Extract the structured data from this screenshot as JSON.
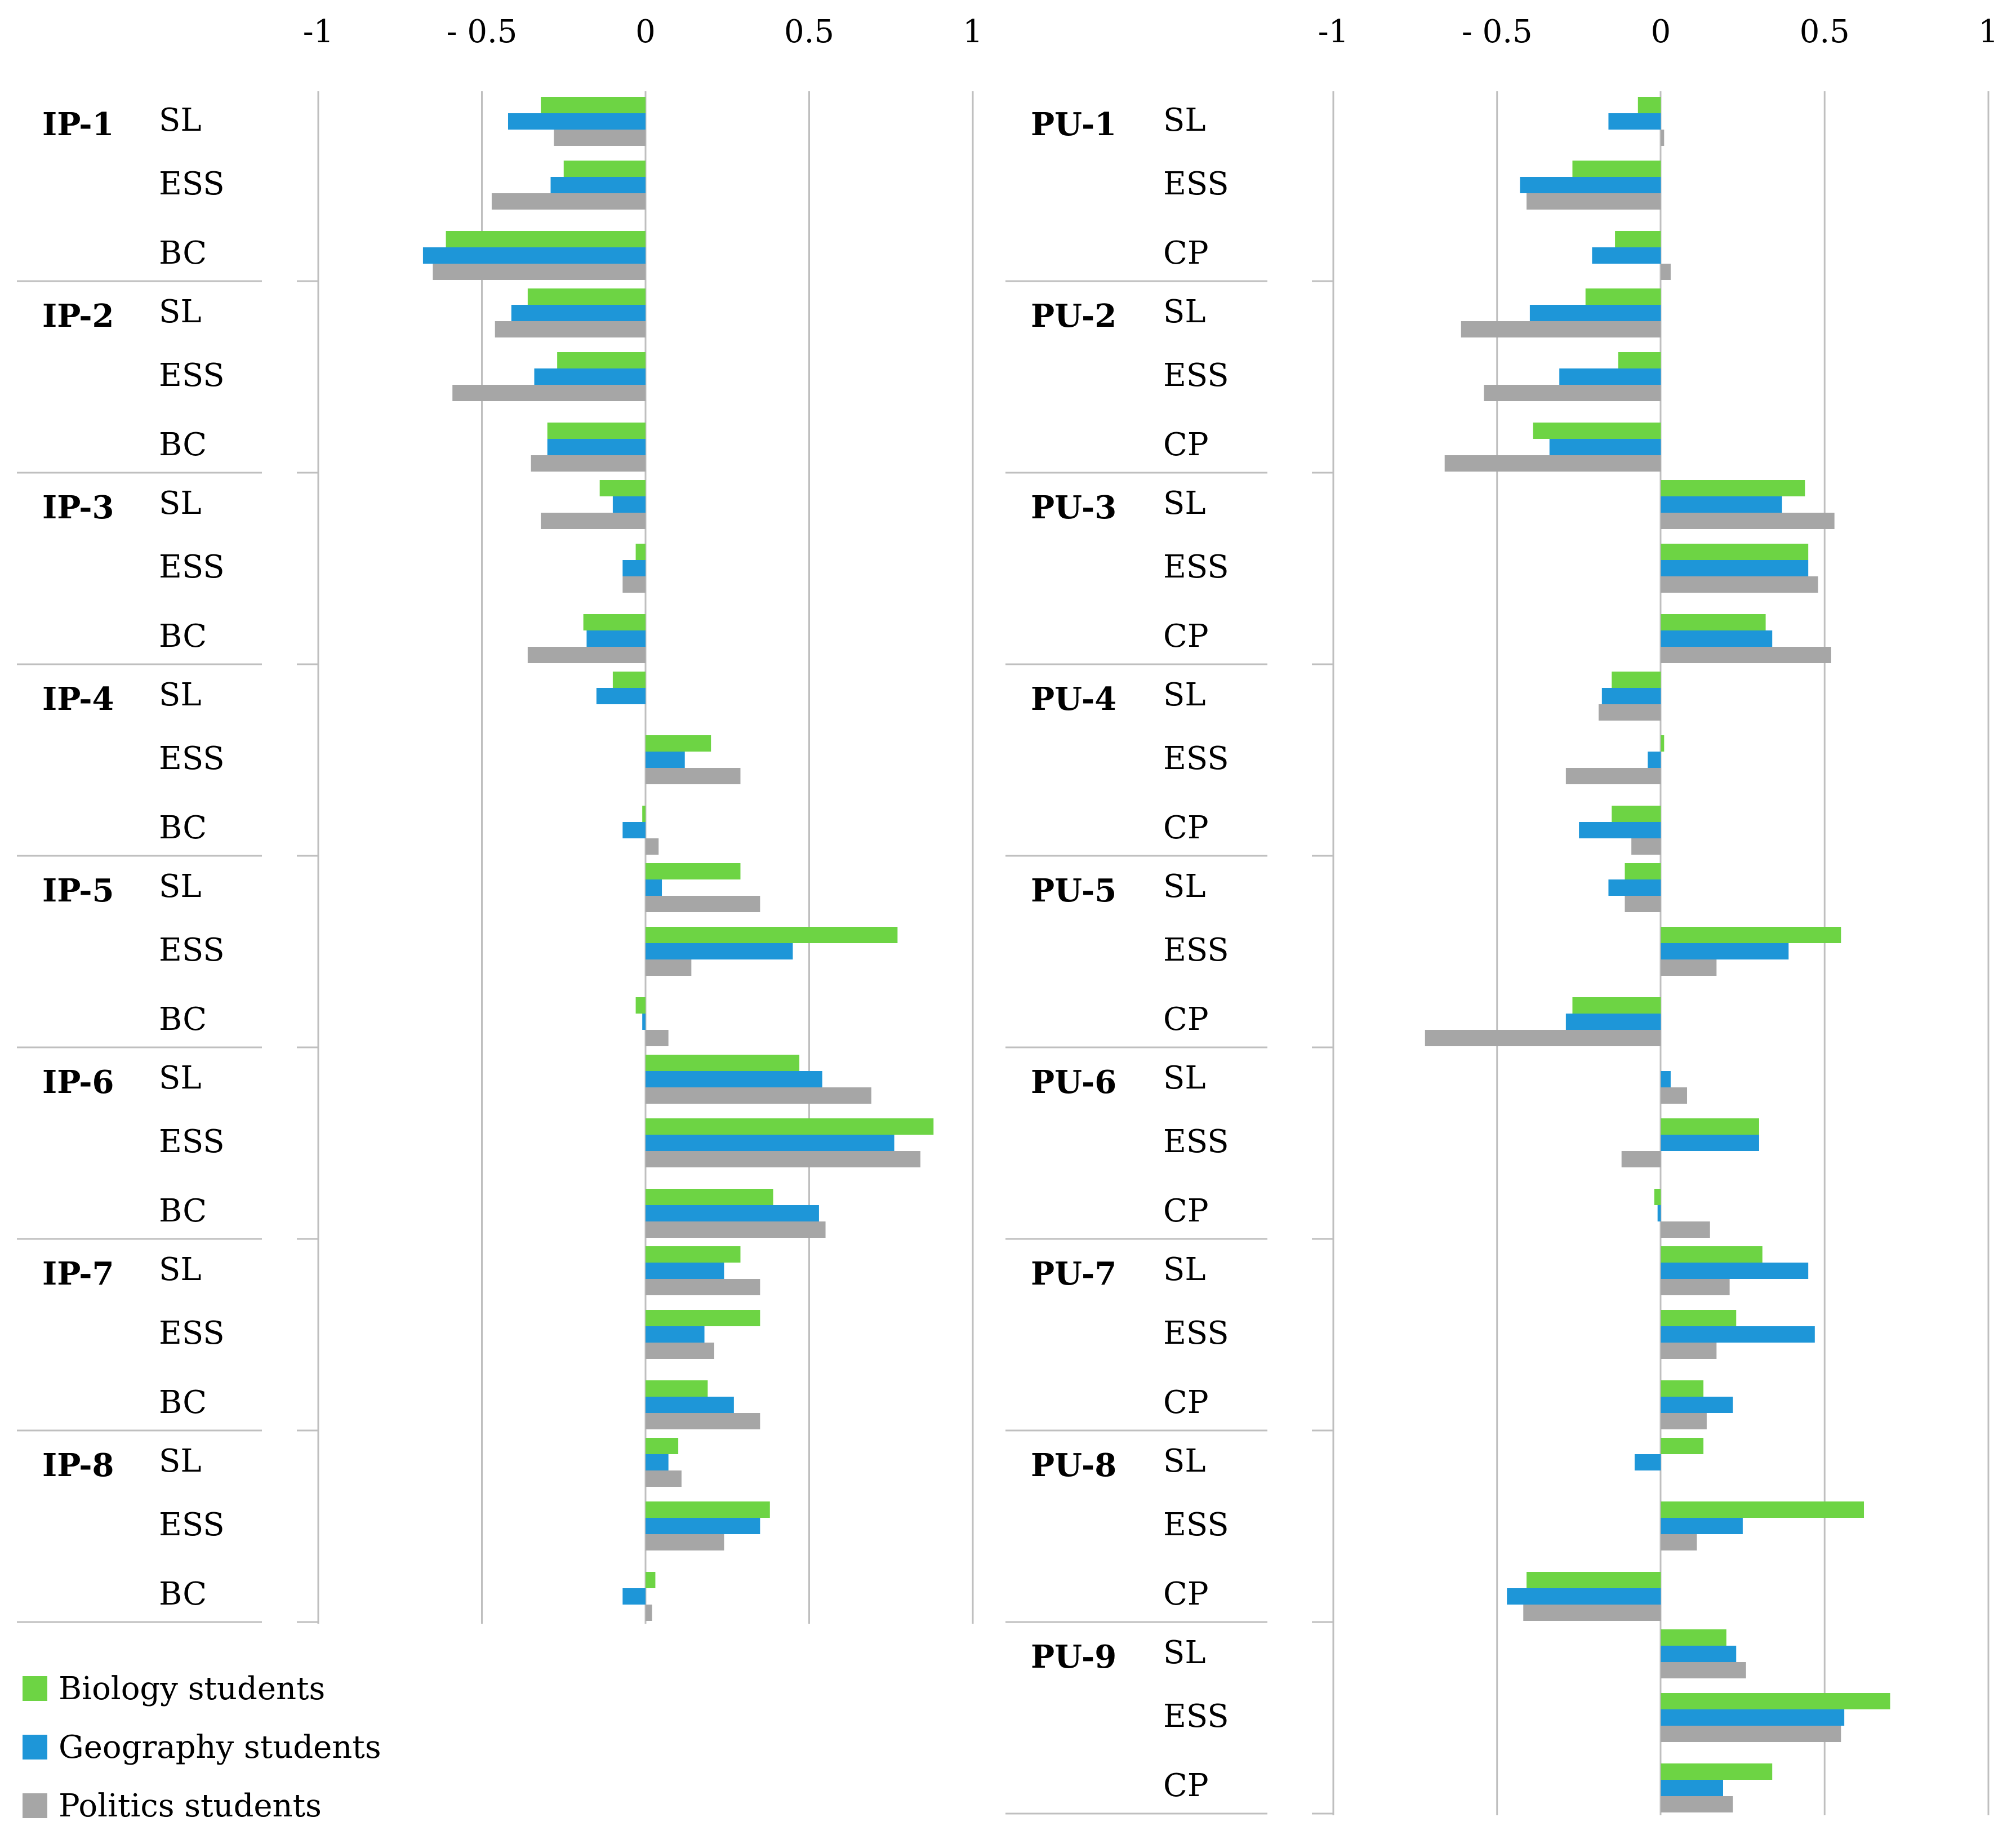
{
  "chart_data": {
    "type": "bar",
    "orientation": "horizontal",
    "colors": {
      "biology": "#6dd444",
      "geography": "#1e96d8",
      "politics": "#a6a6a6",
      "axis": "#bfbfbf"
    },
    "legend": {
      "position": "bottom-left",
      "items": [
        {
          "key": "biology",
          "label": "Biology students"
        },
        {
          "key": "geography",
          "label": "Geography students"
        },
        {
          "key": "politics",
          "label": "Politics students"
        }
      ]
    },
    "panels": [
      {
        "name": "IP",
        "xlim": [
          -1,
          1
        ],
        "xticks": [
          "-1",
          "- 0.5",
          "0",
          "0.5",
          "1"
        ],
        "groups": [
          {
            "label": "IP-1",
            "items": [
              {
                "label": "SL",
                "values": [
                  -0.32,
                  -0.42,
                  -0.28
                ]
              },
              {
                "label": "ESS",
                "values": [
                  -0.25,
                  -0.29,
                  -0.47
                ]
              },
              {
                "label": "BC",
                "values": [
                  -0.61,
                  -0.68,
                  -0.65
                ]
              }
            ]
          },
          {
            "label": "IP-2",
            "items": [
              {
                "label": "SL",
                "values": [
                  -0.36,
                  -0.41,
                  -0.46
                ]
              },
              {
                "label": "ESS",
                "values": [
                  -0.27,
                  -0.34,
                  -0.59
                ]
              },
              {
                "label": "BC",
                "values": [
                  -0.3,
                  -0.3,
                  -0.35
                ]
              }
            ]
          },
          {
            "label": "IP-3",
            "items": [
              {
                "label": "SL",
                "values": [
                  -0.14,
                  -0.1,
                  -0.32
                ]
              },
              {
                "label": "ESS",
                "values": [
                  -0.03,
                  -0.07,
                  -0.07
                ]
              },
              {
                "label": "BC",
                "values": [
                  -0.19,
                  -0.18,
                  -0.36
                ]
              }
            ]
          },
          {
            "label": "IP-4",
            "items": [
              {
                "label": "SL",
                "values": [
                  -0.1,
                  -0.15,
                  0
                ]
              },
              {
                "label": "ESS",
                "values": [
                  0.2,
                  0.12,
                  0.29
                ]
              },
              {
                "label": "BC",
                "values": [
                  -0.01,
                  -0.07,
                  0.04
                ]
              }
            ]
          },
          {
            "label": "IP-5",
            "items": [
              {
                "label": "SL",
                "values": [
                  0.29,
                  0.05,
                  0.35
                ]
              },
              {
                "label": "ESS",
                "values": [
                  0.77,
                  0.45,
                  0.14
                ]
              },
              {
                "label": "BC",
                "values": [
                  -0.03,
                  -0.01,
                  0.07
                ]
              }
            ]
          },
          {
            "label": "IP-6",
            "items": [
              {
                "label": "SL",
                "values": [
                  0.47,
                  0.54,
                  0.69
                ]
              },
              {
                "label": "ESS",
                "values": [
                  0.88,
                  0.76,
                  0.84
                ]
              },
              {
                "label": "BC",
                "values": [
                  0.39,
                  0.53,
                  0.55
                ]
              }
            ]
          },
          {
            "label": "IP-7",
            "items": [
              {
                "label": "SL",
                "values": [
                  0.29,
                  0.24,
                  0.35
                ]
              },
              {
                "label": "ESS",
                "values": [
                  0.35,
                  0.18,
                  0.21
                ]
              },
              {
                "label": "BC",
                "values": [
                  0.19,
                  0.27,
                  0.35
                ]
              }
            ]
          },
          {
            "label": "IP-8",
            "items": [
              {
                "label": "SL",
                "values": [
                  0.1,
                  0.07,
                  0.11
                ]
              },
              {
                "label": "ESS",
                "values": [
                  0.38,
                  0.35,
                  0.24
                ]
              },
              {
                "label": "BC",
                "values": [
                  0.03,
                  -0.07,
                  0.02
                ]
              }
            ]
          }
        ]
      },
      {
        "name": "PU",
        "xlim": [
          -1,
          1
        ],
        "xticks": [
          "-1",
          "- 0.5",
          "0",
          "0.5",
          "1"
        ],
        "groups": [
          {
            "label": "PU-1",
            "items": [
              {
                "label": "SL",
                "values": [
                  -0.07,
                  -0.16,
                  0.01
                ]
              },
              {
                "label": "ESS",
                "values": [
                  -0.27,
                  -0.43,
                  -0.41
                ]
              },
              {
                "label": "CP",
                "values": [
                  -0.14,
                  -0.21,
                  0.03
                ]
              }
            ]
          },
          {
            "label": "PU-2",
            "items": [
              {
                "label": "SL",
                "values": [
                  -0.23,
                  -0.4,
                  -0.61
                ]
              },
              {
                "label": "ESS",
                "values": [
                  -0.13,
                  -0.31,
                  -0.54
                ]
              },
              {
                "label": "CP",
                "values": [
                  -0.39,
                  -0.34,
                  -0.66
                ]
              }
            ]
          },
          {
            "label": "PU-3",
            "items": [
              {
                "label": "SL",
                "values": [
                  0.44,
                  0.37,
                  0.53
                ]
              },
              {
                "label": "ESS",
                "values": [
                  0.45,
                  0.45,
                  0.48
                ]
              },
              {
                "label": "CP",
                "values": [
                  0.32,
                  0.34,
                  0.52
                ]
              }
            ]
          },
          {
            "label": "PU-4",
            "items": [
              {
                "label": "SL",
                "values": [
                  -0.15,
                  -0.18,
                  -0.19
                ]
              },
              {
                "label": "ESS",
                "values": [
                  0.01,
                  -0.04,
                  -0.29
                ]
              },
              {
                "label": "CP",
                "values": [
                  -0.15,
                  -0.25,
                  -0.09
                ]
              }
            ]
          },
          {
            "label": "PU-5",
            "items": [
              {
                "label": "SL",
                "values": [
                  -0.11,
                  -0.16,
                  -0.11
                ]
              },
              {
                "label": "ESS",
                "values": [
                  0.55,
                  0.39,
                  0.17
                ]
              },
              {
                "label": "CP",
                "values": [
                  -0.27,
                  -0.29,
                  -0.72
                ]
              }
            ]
          },
          {
            "label": "PU-6",
            "items": [
              {
                "label": "SL",
                "values": [
                  0,
                  0.03,
                  0.08
                ]
              },
              {
                "label": "ESS",
                "values": [
                  0.3,
                  0.3,
                  -0.12
                ]
              },
              {
                "label": "CP",
                "values": [
                  -0.02,
                  -0.01,
                  0.15
                ]
              }
            ]
          },
          {
            "label": "PU-7",
            "items": [
              {
                "label": "SL",
                "values": [
                  0.31,
                  0.45,
                  0.21
                ]
              },
              {
                "label": "ESS",
                "values": [
                  0.23,
                  0.47,
                  0.17
                ]
              },
              {
                "label": "CP",
                "values": [
                  0.13,
                  0.22,
                  0.14
                ]
              }
            ]
          },
          {
            "label": "PU-8",
            "items": [
              {
                "label": "SL",
                "values": [
                  0.13,
                  -0.08,
                  0
                ]
              },
              {
                "label": "ESS",
                "values": [
                  0.62,
                  0.25,
                  0.11
                ]
              },
              {
                "label": "CP",
                "values": [
                  -0.41,
                  -0.47,
                  -0.42
                ]
              }
            ]
          },
          {
            "label": "PU-9",
            "items": [
              {
                "label": "SL",
                "values": [
                  0.2,
                  0.23,
                  0.26
                ]
              },
              {
                "label": "ESS",
                "values": [
                  0.7,
                  0.56,
                  0.55
                ]
              },
              {
                "label": "CP",
                "values": [
                  0.34,
                  0.19,
                  0.22
                ]
              }
            ]
          }
        ]
      }
    ]
  }
}
